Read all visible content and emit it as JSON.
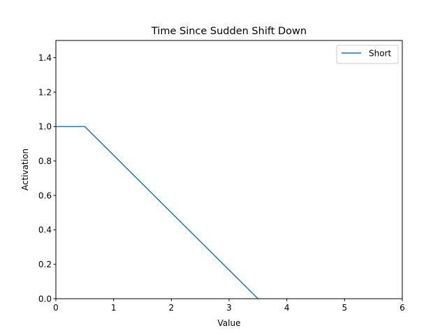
{
  "chart_data": {
    "type": "line",
    "title": "Time Since Sudden Shift Down",
    "xlabel": "Value",
    "ylabel": "Activation",
    "xlim": [
      0,
      6
    ],
    "ylim": [
      0,
      1.5
    ],
    "xticks": [
      0,
      1,
      2,
      3,
      4,
      5,
      6
    ],
    "xtick_labels": [
      "0",
      "1",
      "2",
      "3",
      "4",
      "5",
      "6"
    ],
    "yticks": [
      0.0,
      0.2,
      0.4,
      0.6,
      0.8,
      1.0,
      1.2,
      1.4
    ],
    "ytick_labels": [
      "0.0",
      "0.2",
      "0.4",
      "0.6",
      "0.8",
      "1.0",
      "1.2",
      "1.4"
    ],
    "grid": false,
    "legend_position": "upper right",
    "series": [
      {
        "name": "Short",
        "color": "#1f77b4",
        "x": [
          0,
          0.5,
          3.5
        ],
        "y": [
          1.0,
          1.0,
          0.0
        ]
      }
    ]
  }
}
